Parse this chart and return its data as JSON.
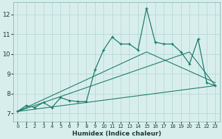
{
  "xlabel": "Humidex (Indice chaleur)",
  "ylabel": "",
  "background_color": "#d8eeed",
  "grid_color": "#b0d4d0",
  "line_color": "#1a7a6a",
  "xlim": [
    -0.5,
    23.5
  ],
  "ylim": [
    6.6,
    12.6
  ],
  "xticks": [
    0,
    1,
    2,
    3,
    4,
    5,
    6,
    7,
    8,
    9,
    10,
    11,
    12,
    13,
    14,
    15,
    16,
    17,
    18,
    19,
    20,
    21,
    22,
    23
  ],
  "yticks": [
    7,
    8,
    9,
    10,
    11,
    12
  ],
  "series1_x": [
    0,
    1,
    2,
    3,
    4,
    5,
    6,
    7,
    8,
    9,
    10,
    11,
    12,
    13,
    14,
    15,
    16,
    17,
    18,
    19,
    20,
    21,
    22,
    23
  ],
  "series1_y": [
    7.1,
    7.4,
    7.3,
    7.55,
    7.3,
    7.8,
    7.65,
    7.6,
    7.6,
    9.2,
    10.2,
    10.85,
    10.5,
    10.5,
    10.2,
    12.3,
    10.6,
    10.5,
    10.5,
    10.1,
    9.5,
    10.75,
    8.55,
    8.4
  ],
  "series2_x": [
    0,
    20,
    23
  ],
  "series2_y": [
    7.1,
    10.1,
    8.4
  ],
  "series3_x": [
    0,
    23
  ],
  "series3_y": [
    7.1,
    8.4
  ],
  "series4_x": [
    0,
    15,
    23
  ],
  "series4_y": [
    7.1,
    10.1,
    8.55
  ],
  "figsize": [
    3.2,
    2.0
  ],
  "dpi": 100
}
